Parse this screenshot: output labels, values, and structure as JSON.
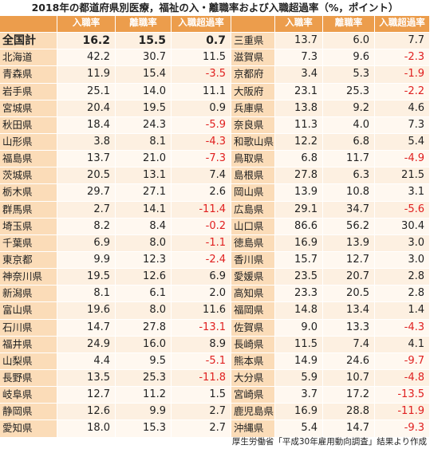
{
  "title": "2018年の都道府県別医療，福祉の入・離職率および入職超過率（%，ポイント）",
  "headers": [
    "入職率",
    "離職率",
    "入職超過率"
  ],
  "rows": [
    [
      "全国計",
      "16.2",
      "15.5",
      "0.7",
      "三重県",
      "13.7",
      "6.0",
      "7.7"
    ],
    [
      "北海道",
      "42.2",
      "30.7",
      "11.5",
      "滋賀県",
      "7.3",
      "9.6",
      "-2.3"
    ],
    [
      "青森県",
      "11.9",
      "15.4",
      "-3.5",
      "京都府",
      "3.4",
      "5.3",
      "-1.9"
    ],
    [
      "岩手県",
      "25.1",
      "14.0",
      "11.1",
      "大阪府",
      "23.1",
      "25.3",
      "-2.2"
    ],
    [
      "宮城県",
      "20.4",
      "19.5",
      "0.9",
      "兵庫県",
      "13.8",
      "9.2",
      "4.6"
    ],
    [
      "秋田県",
      "18.4",
      "24.3",
      "-5.9",
      "奈良県",
      "11.3",
      "4.0",
      "7.3"
    ],
    [
      "山形県",
      "3.8",
      "8.1",
      "-4.3",
      "和歌山県",
      "12.2",
      "6.8",
      "5.4"
    ],
    [
      "福島県",
      "13.7",
      "21.0",
      "-7.3",
      "鳥取県",
      "6.8",
      "11.7",
      "-4.9"
    ],
    [
      "茨城県",
      "20.5",
      "13.1",
      "7.4",
      "島根県",
      "27.8",
      "6.3",
      "21.5"
    ],
    [
      "栃木県",
      "29.7",
      "27.1",
      "2.6",
      "岡山県",
      "13.9",
      "10.8",
      "3.1"
    ],
    [
      "群馬県",
      "2.7",
      "14.1",
      "-11.4",
      "広島県",
      "29.1",
      "34.7",
      "-5.6"
    ],
    [
      "埼玉県",
      "8.2",
      "8.4",
      "-0.2",
      "山口県",
      "86.6",
      "56.2",
      "30.4"
    ],
    [
      "千葉県",
      "6.9",
      "8.0",
      "-1.1",
      "徳島県",
      "16.9",
      "13.9",
      "3.0"
    ],
    [
      "東京都",
      "9.9",
      "12.3",
      "-2.4",
      "香川県",
      "15.7",
      "12.7",
      "3.0"
    ],
    [
      "神奈川県",
      "19.5",
      "12.6",
      "6.9",
      "愛媛県",
      "23.5",
      "20.7",
      "2.8"
    ],
    [
      "新潟県",
      "8.1",
      "6.1",
      "2.0",
      "高知県",
      "23.3",
      "20.5",
      "2.8"
    ],
    [
      "富山県",
      "19.6",
      "8.0",
      "11.6",
      "福岡県",
      "14.8",
      "13.4",
      "1.4"
    ],
    [
      "石川県",
      "14.7",
      "27.8",
      "-13.1",
      "佐賀県",
      "9.0",
      "13.3",
      "-4.3"
    ],
    [
      "福井県",
      "24.9",
      "16.0",
      "8.9",
      "長崎県",
      "11.5",
      "7.4",
      "4.1"
    ],
    [
      "山梨県",
      "4.4",
      "9.5",
      "-5.1",
      "熊本県",
      "14.9",
      "24.6",
      "-9.7"
    ],
    [
      "長野県",
      "13.5",
      "25.3",
      "-11.8",
      "大分県",
      "5.9",
      "10.7",
      "-4.8"
    ],
    [
      "岐阜県",
      "12.7",
      "11.2",
      "1.5",
      "宮崎県",
      "3.7",
      "17.2",
      "-13.5"
    ],
    [
      "静岡県",
      "12.6",
      "9.9",
      "2.7",
      "鹿児島県",
      "16.9",
      "28.8",
      "-11.9"
    ],
    [
      "愛知県",
      "18.0",
      "15.3",
      "2.7",
      "沖縄県",
      "5.4",
      "14.7",
      "-9.3"
    ]
  ],
  "footnote": "厚生労働省「平成30年雇用動向調査」結果より作成"
}
